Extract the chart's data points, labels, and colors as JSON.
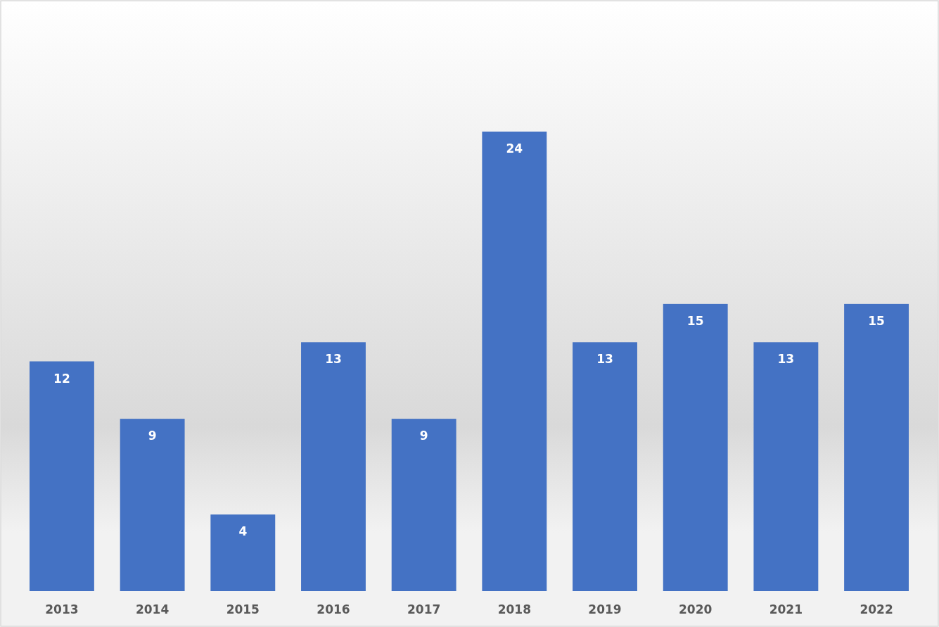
{
  "chart_data": {
    "type": "bar",
    "categories": [
      "2013",
      "2014",
      "2015",
      "2016",
      "2017",
      "2018",
      "2019",
      "2020",
      "2021",
      "2022"
    ],
    "values": [
      12,
      9,
      4,
      13,
      9,
      24,
      13,
      15,
      13,
      15
    ],
    "color": "#4472c4",
    "data_labels": true
  }
}
